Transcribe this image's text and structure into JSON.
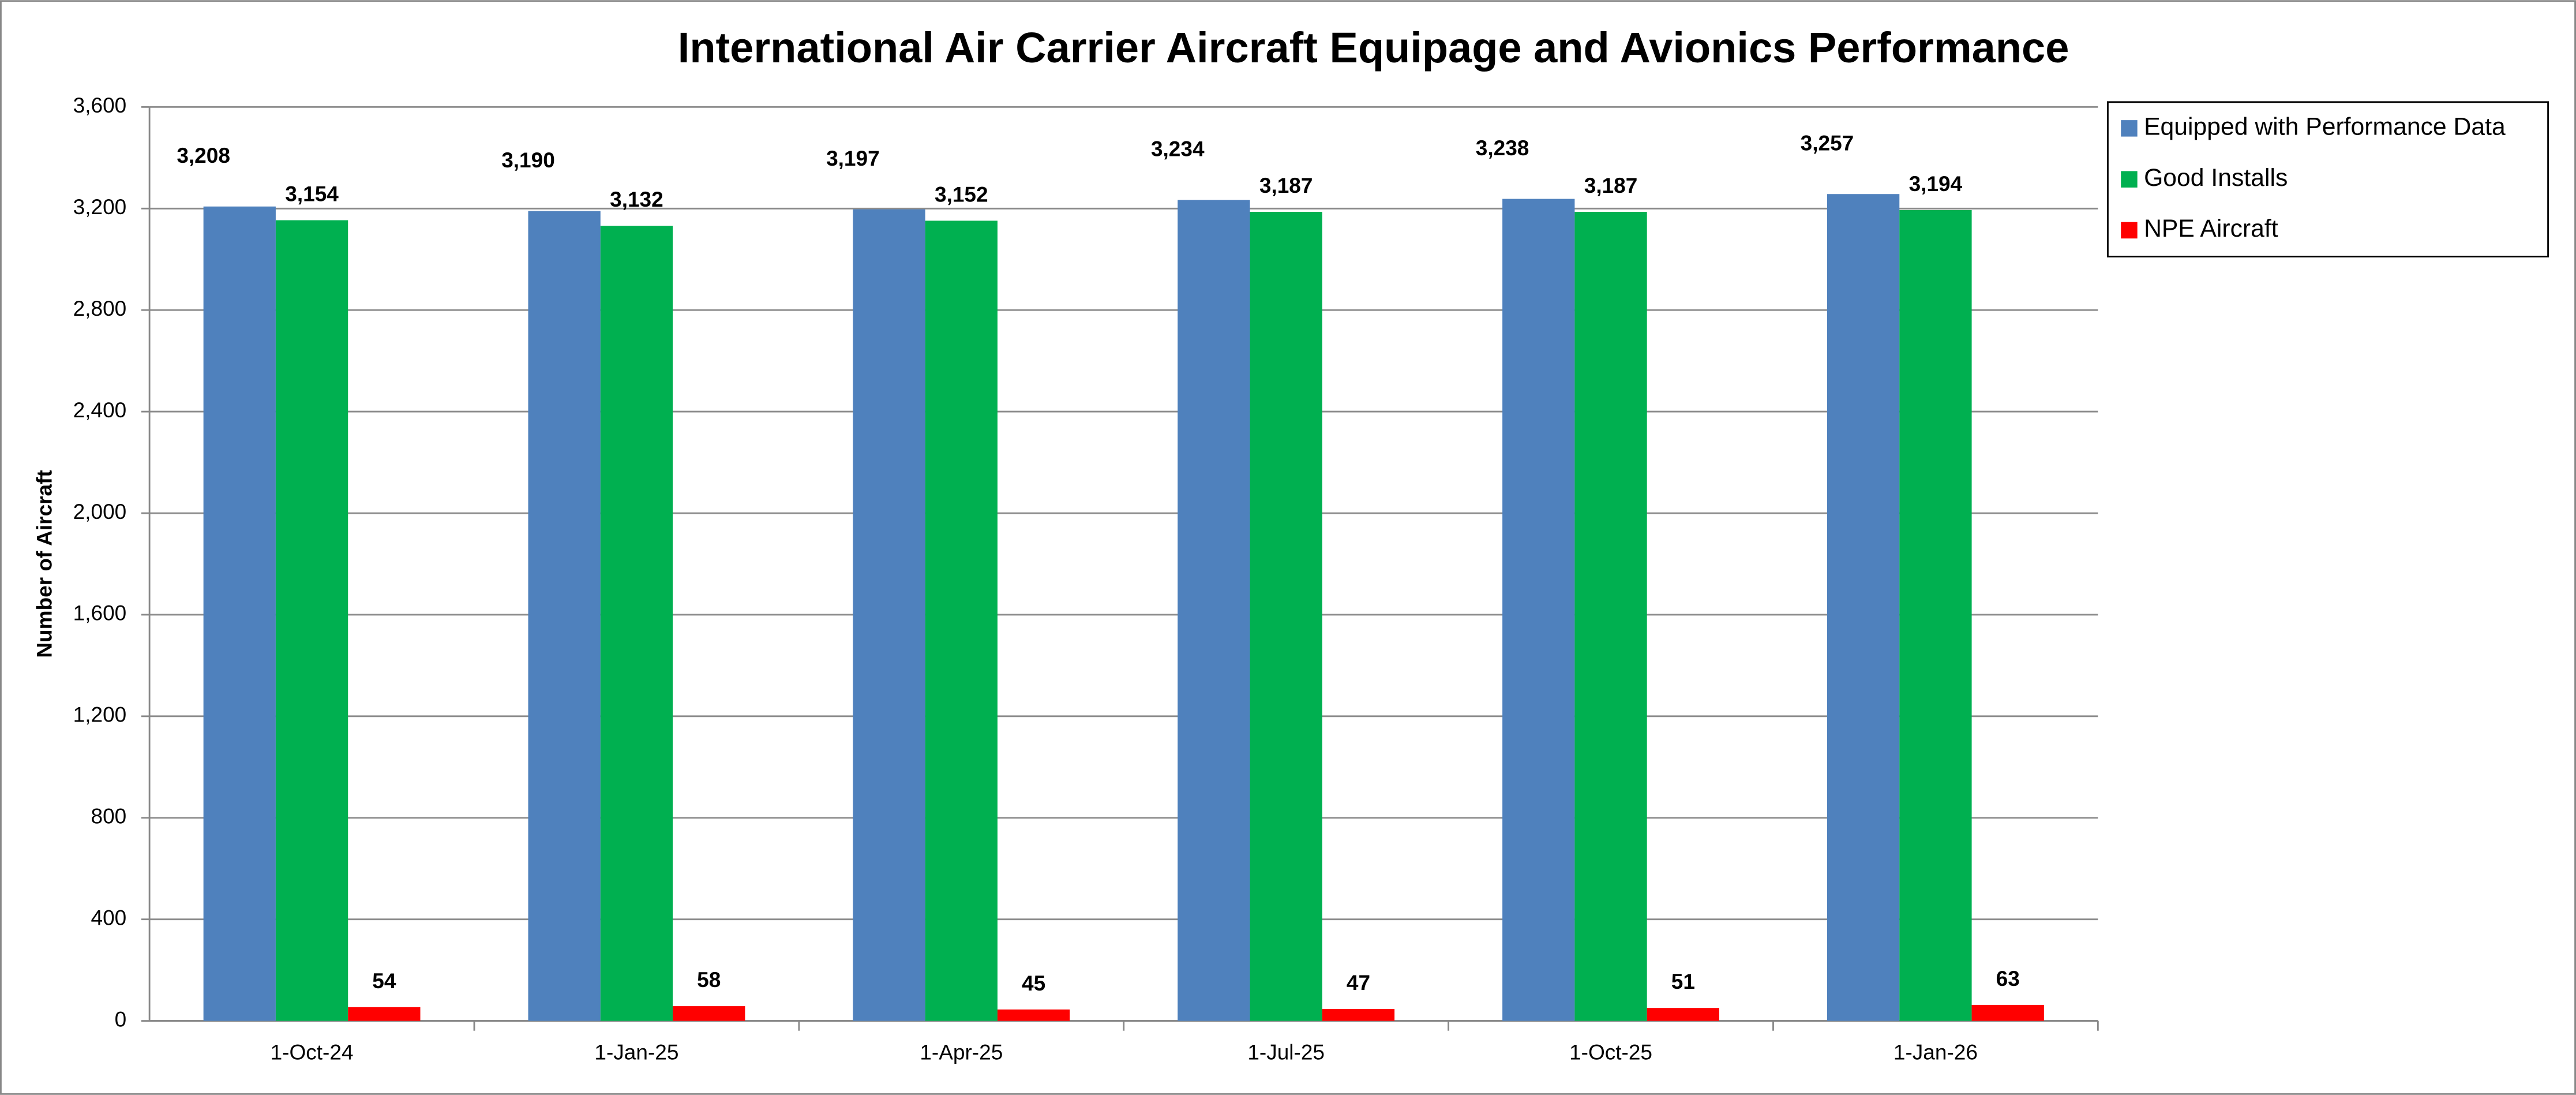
{
  "chart_data": {
    "type": "bar",
    "title": "International Air Carrier Aircraft Equipage and Avionics Performance",
    "y_label": "Number of Aircraft",
    "categories": [
      "1-Oct-24",
      "1-Jan-25",
      "1-Apr-25",
      "1-Jul-25",
      "1-Oct-25",
      "1-Jan-26"
    ],
    "series": [
      {
        "name": "Equipped with Performance Data",
        "color": "#4f81bd",
        "values": [
          3208,
          3190,
          3197,
          3234,
          3238,
          3257
        ],
        "value_labels": [
          "3,208",
          "3,190",
          "3,197",
          "3,234",
          "3,238",
          "3,257"
        ]
      },
      {
        "name": "Good Installs",
        "color": "#00b050",
        "values": [
          3154,
          3132,
          3152,
          3187,
          3187,
          3194
        ],
        "value_labels": [
          "3,154",
          "3,132",
          "3,152",
          "3,187",
          "3,187",
          "3,194"
        ]
      },
      {
        "name": "NPE Aircraft",
        "color": "#ff0000",
        "values": [
          54,
          58,
          45,
          47,
          51,
          63
        ],
        "value_labels": [
          "54",
          "58",
          "45",
          "47",
          "51",
          "63"
        ]
      }
    ],
    "ylim": [
      0,
      3600
    ],
    "yticks": [
      0,
      400,
      800,
      {
        "value": 1200,
        "label": "1,200"
      },
      {
        "value": 1600,
        "label": "1,600"
      },
      {
        "value": 2000,
        "label": "2,000"
      },
      {
        "value": 2400,
        "label": "2,400"
      },
      {
        "value": 2800,
        "label": "2,800"
      },
      {
        "value": 3200,
        "label": "3,200"
      },
      {
        "value": 3600,
        "label": "3,600"
      }
    ],
    "grid": true,
    "legend": "right"
  }
}
